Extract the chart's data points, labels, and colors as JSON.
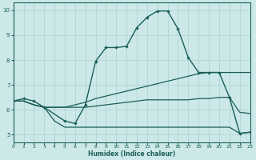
{
  "xlabel": "Humidex (Indice chaleur)",
  "bg_color": "#cce8e8",
  "grid_color": "#b0d4d4",
  "line_color": "#1a5f58",
  "xlim": [
    0,
    23
  ],
  "ylim": [
    4.7,
    10.3
  ],
  "xticks": [
    0,
    1,
    2,
    3,
    4,
    5,
    6,
    7,
    8,
    9,
    10,
    11,
    12,
    13,
    14,
    15,
    16,
    17,
    18,
    19,
    20,
    21,
    22,
    23
  ],
  "yticks": [
    5,
    6,
    7,
    8,
    9,
    10
  ],
  "curve1_x": [
    0,
    1,
    2,
    3,
    5,
    6,
    7,
    8,
    9,
    10,
    11,
    12,
    13,
    14,
    15,
    16,
    17,
    18,
    19,
    20,
    21,
    22,
    23
  ],
  "curve1_y": [
    6.35,
    6.45,
    6.35,
    6.1,
    5.55,
    5.45,
    6.2,
    7.95,
    8.5,
    8.5,
    8.55,
    9.3,
    9.72,
    9.97,
    9.97,
    9.25,
    8.1,
    7.5,
    7.5,
    7.5,
    6.5,
    5.05,
    5.1
  ],
  "curve2_x": [
    0,
    1,
    2,
    3,
    4,
    5,
    6,
    7,
    8,
    9,
    10,
    11,
    12,
    13,
    14,
    15,
    16,
    17,
    18,
    19,
    20,
    21,
    22,
    23
  ],
  "curve2_y": [
    6.35,
    6.35,
    6.2,
    6.1,
    6.1,
    6.1,
    6.2,
    6.3,
    6.45,
    6.55,
    6.65,
    6.75,
    6.85,
    6.95,
    7.05,
    7.15,
    7.25,
    7.35,
    7.45,
    7.5,
    7.5,
    7.5,
    7.5,
    7.5
  ],
  "curve3_x": [
    0,
    1,
    2,
    3,
    4,
    5,
    6,
    7,
    8,
    9,
    10,
    11,
    12,
    13,
    14,
    15,
    16,
    17,
    18,
    19,
    20,
    21,
    22,
    23
  ],
  "curve3_y": [
    6.35,
    6.35,
    6.2,
    6.1,
    5.55,
    5.3,
    5.3,
    5.3,
    5.3,
    5.3,
    5.3,
    5.3,
    5.3,
    5.3,
    5.3,
    5.3,
    5.3,
    5.3,
    5.3,
    5.3,
    5.3,
    5.3,
    5.05,
    5.1
  ],
  "curve4_x": [
    0,
    1,
    2,
    3,
    4,
    5,
    6,
    7,
    8,
    9,
    10,
    11,
    12,
    13,
    14,
    15,
    16,
    17,
    18,
    19,
    20,
    21,
    22,
    23
  ],
  "curve4_y": [
    6.35,
    6.35,
    6.2,
    6.1,
    6.1,
    6.1,
    6.1,
    6.1,
    6.15,
    6.2,
    6.25,
    6.3,
    6.35,
    6.4,
    6.4,
    6.4,
    6.4,
    6.4,
    6.45,
    6.45,
    6.5,
    6.5,
    5.9,
    5.85
  ]
}
